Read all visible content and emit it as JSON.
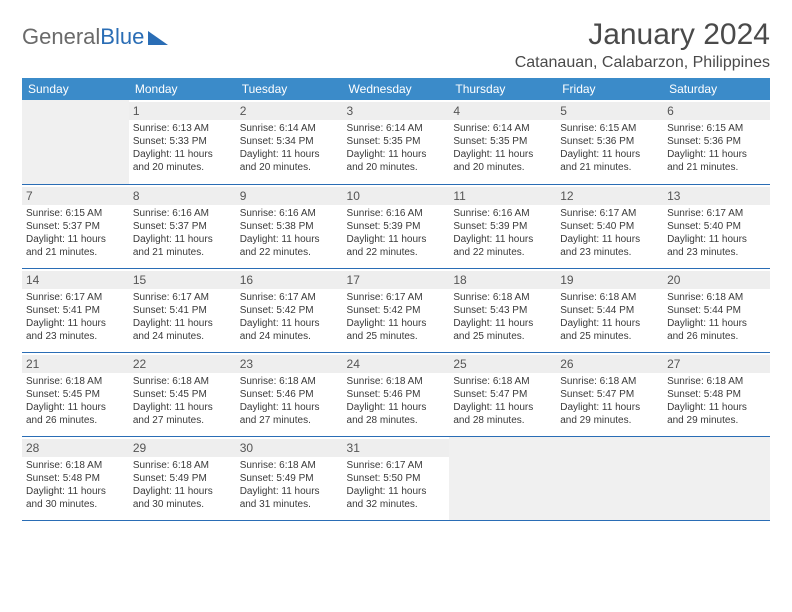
{
  "logo": {
    "text_general": "General",
    "text_blue": "Blue"
  },
  "title": "January 2024",
  "location": "Catanauan, Calabarzon, Philippines",
  "colors": {
    "header_bg": "#3b8bc9",
    "header_text": "#ffffff",
    "rule": "#2a6db5",
    "daynum_bg": "#eeeeee",
    "daynum_text": "#555555",
    "body_text": "#3a3a3a",
    "empty_bg": "#f0f0f0",
    "logo_grey": "#6a6a6a",
    "logo_blue": "#2a6db5",
    "page_bg": "#ffffff"
  },
  "typography": {
    "title_fontsize": 30,
    "location_fontsize": 16,
    "weekday_fontsize": 12,
    "daynum_fontsize": 12,
    "cell_fontsize": 10
  },
  "week_days": [
    "Sunday",
    "Monday",
    "Tuesday",
    "Wednesday",
    "Thursday",
    "Friday",
    "Saturday"
  ],
  "weeks": [
    [
      null,
      {
        "n": "1",
        "sr": "Sunrise: 6:13 AM",
        "ss": "Sunset: 5:33 PM",
        "d1": "Daylight: 11 hours",
        "d2": "and 20 minutes."
      },
      {
        "n": "2",
        "sr": "Sunrise: 6:14 AM",
        "ss": "Sunset: 5:34 PM",
        "d1": "Daylight: 11 hours",
        "d2": "and 20 minutes."
      },
      {
        "n": "3",
        "sr": "Sunrise: 6:14 AM",
        "ss": "Sunset: 5:35 PM",
        "d1": "Daylight: 11 hours",
        "d2": "and 20 minutes."
      },
      {
        "n": "4",
        "sr": "Sunrise: 6:14 AM",
        "ss": "Sunset: 5:35 PM",
        "d1": "Daylight: 11 hours",
        "d2": "and 20 minutes."
      },
      {
        "n": "5",
        "sr": "Sunrise: 6:15 AM",
        "ss": "Sunset: 5:36 PM",
        "d1": "Daylight: 11 hours",
        "d2": "and 21 minutes."
      },
      {
        "n": "6",
        "sr": "Sunrise: 6:15 AM",
        "ss": "Sunset: 5:36 PM",
        "d1": "Daylight: 11 hours",
        "d2": "and 21 minutes."
      }
    ],
    [
      {
        "n": "7",
        "sr": "Sunrise: 6:15 AM",
        "ss": "Sunset: 5:37 PM",
        "d1": "Daylight: 11 hours",
        "d2": "and 21 minutes."
      },
      {
        "n": "8",
        "sr": "Sunrise: 6:16 AM",
        "ss": "Sunset: 5:37 PM",
        "d1": "Daylight: 11 hours",
        "d2": "and 21 minutes."
      },
      {
        "n": "9",
        "sr": "Sunrise: 6:16 AM",
        "ss": "Sunset: 5:38 PM",
        "d1": "Daylight: 11 hours",
        "d2": "and 22 minutes."
      },
      {
        "n": "10",
        "sr": "Sunrise: 6:16 AM",
        "ss": "Sunset: 5:39 PM",
        "d1": "Daylight: 11 hours",
        "d2": "and 22 minutes."
      },
      {
        "n": "11",
        "sr": "Sunrise: 6:16 AM",
        "ss": "Sunset: 5:39 PM",
        "d1": "Daylight: 11 hours",
        "d2": "and 22 minutes."
      },
      {
        "n": "12",
        "sr": "Sunrise: 6:17 AM",
        "ss": "Sunset: 5:40 PM",
        "d1": "Daylight: 11 hours",
        "d2": "and 23 minutes."
      },
      {
        "n": "13",
        "sr": "Sunrise: 6:17 AM",
        "ss": "Sunset: 5:40 PM",
        "d1": "Daylight: 11 hours",
        "d2": "and 23 minutes."
      }
    ],
    [
      {
        "n": "14",
        "sr": "Sunrise: 6:17 AM",
        "ss": "Sunset: 5:41 PM",
        "d1": "Daylight: 11 hours",
        "d2": "and 23 minutes."
      },
      {
        "n": "15",
        "sr": "Sunrise: 6:17 AM",
        "ss": "Sunset: 5:41 PM",
        "d1": "Daylight: 11 hours",
        "d2": "and 24 minutes."
      },
      {
        "n": "16",
        "sr": "Sunrise: 6:17 AM",
        "ss": "Sunset: 5:42 PM",
        "d1": "Daylight: 11 hours",
        "d2": "and 24 minutes."
      },
      {
        "n": "17",
        "sr": "Sunrise: 6:17 AM",
        "ss": "Sunset: 5:42 PM",
        "d1": "Daylight: 11 hours",
        "d2": "and 25 minutes."
      },
      {
        "n": "18",
        "sr": "Sunrise: 6:18 AM",
        "ss": "Sunset: 5:43 PM",
        "d1": "Daylight: 11 hours",
        "d2": "and 25 minutes."
      },
      {
        "n": "19",
        "sr": "Sunrise: 6:18 AM",
        "ss": "Sunset: 5:44 PM",
        "d1": "Daylight: 11 hours",
        "d2": "and 25 minutes."
      },
      {
        "n": "20",
        "sr": "Sunrise: 6:18 AM",
        "ss": "Sunset: 5:44 PM",
        "d1": "Daylight: 11 hours",
        "d2": "and 26 minutes."
      }
    ],
    [
      {
        "n": "21",
        "sr": "Sunrise: 6:18 AM",
        "ss": "Sunset: 5:45 PM",
        "d1": "Daylight: 11 hours",
        "d2": "and 26 minutes."
      },
      {
        "n": "22",
        "sr": "Sunrise: 6:18 AM",
        "ss": "Sunset: 5:45 PM",
        "d1": "Daylight: 11 hours",
        "d2": "and 27 minutes."
      },
      {
        "n": "23",
        "sr": "Sunrise: 6:18 AM",
        "ss": "Sunset: 5:46 PM",
        "d1": "Daylight: 11 hours",
        "d2": "and 27 minutes."
      },
      {
        "n": "24",
        "sr": "Sunrise: 6:18 AM",
        "ss": "Sunset: 5:46 PM",
        "d1": "Daylight: 11 hours",
        "d2": "and 28 minutes."
      },
      {
        "n": "25",
        "sr": "Sunrise: 6:18 AM",
        "ss": "Sunset: 5:47 PM",
        "d1": "Daylight: 11 hours",
        "d2": "and 28 minutes."
      },
      {
        "n": "26",
        "sr": "Sunrise: 6:18 AM",
        "ss": "Sunset: 5:47 PM",
        "d1": "Daylight: 11 hours",
        "d2": "and 29 minutes."
      },
      {
        "n": "27",
        "sr": "Sunrise: 6:18 AM",
        "ss": "Sunset: 5:48 PM",
        "d1": "Daylight: 11 hours",
        "d2": "and 29 minutes."
      }
    ],
    [
      {
        "n": "28",
        "sr": "Sunrise: 6:18 AM",
        "ss": "Sunset: 5:48 PM",
        "d1": "Daylight: 11 hours",
        "d2": "and 30 minutes."
      },
      {
        "n": "29",
        "sr": "Sunrise: 6:18 AM",
        "ss": "Sunset: 5:49 PM",
        "d1": "Daylight: 11 hours",
        "d2": "and 30 minutes."
      },
      {
        "n": "30",
        "sr": "Sunrise: 6:18 AM",
        "ss": "Sunset: 5:49 PM",
        "d1": "Daylight: 11 hours",
        "d2": "and 31 minutes."
      },
      {
        "n": "31",
        "sr": "Sunrise: 6:17 AM",
        "ss": "Sunset: 5:50 PM",
        "d1": "Daylight: 11 hours",
        "d2": "and 32 minutes."
      },
      null,
      null,
      null
    ]
  ]
}
